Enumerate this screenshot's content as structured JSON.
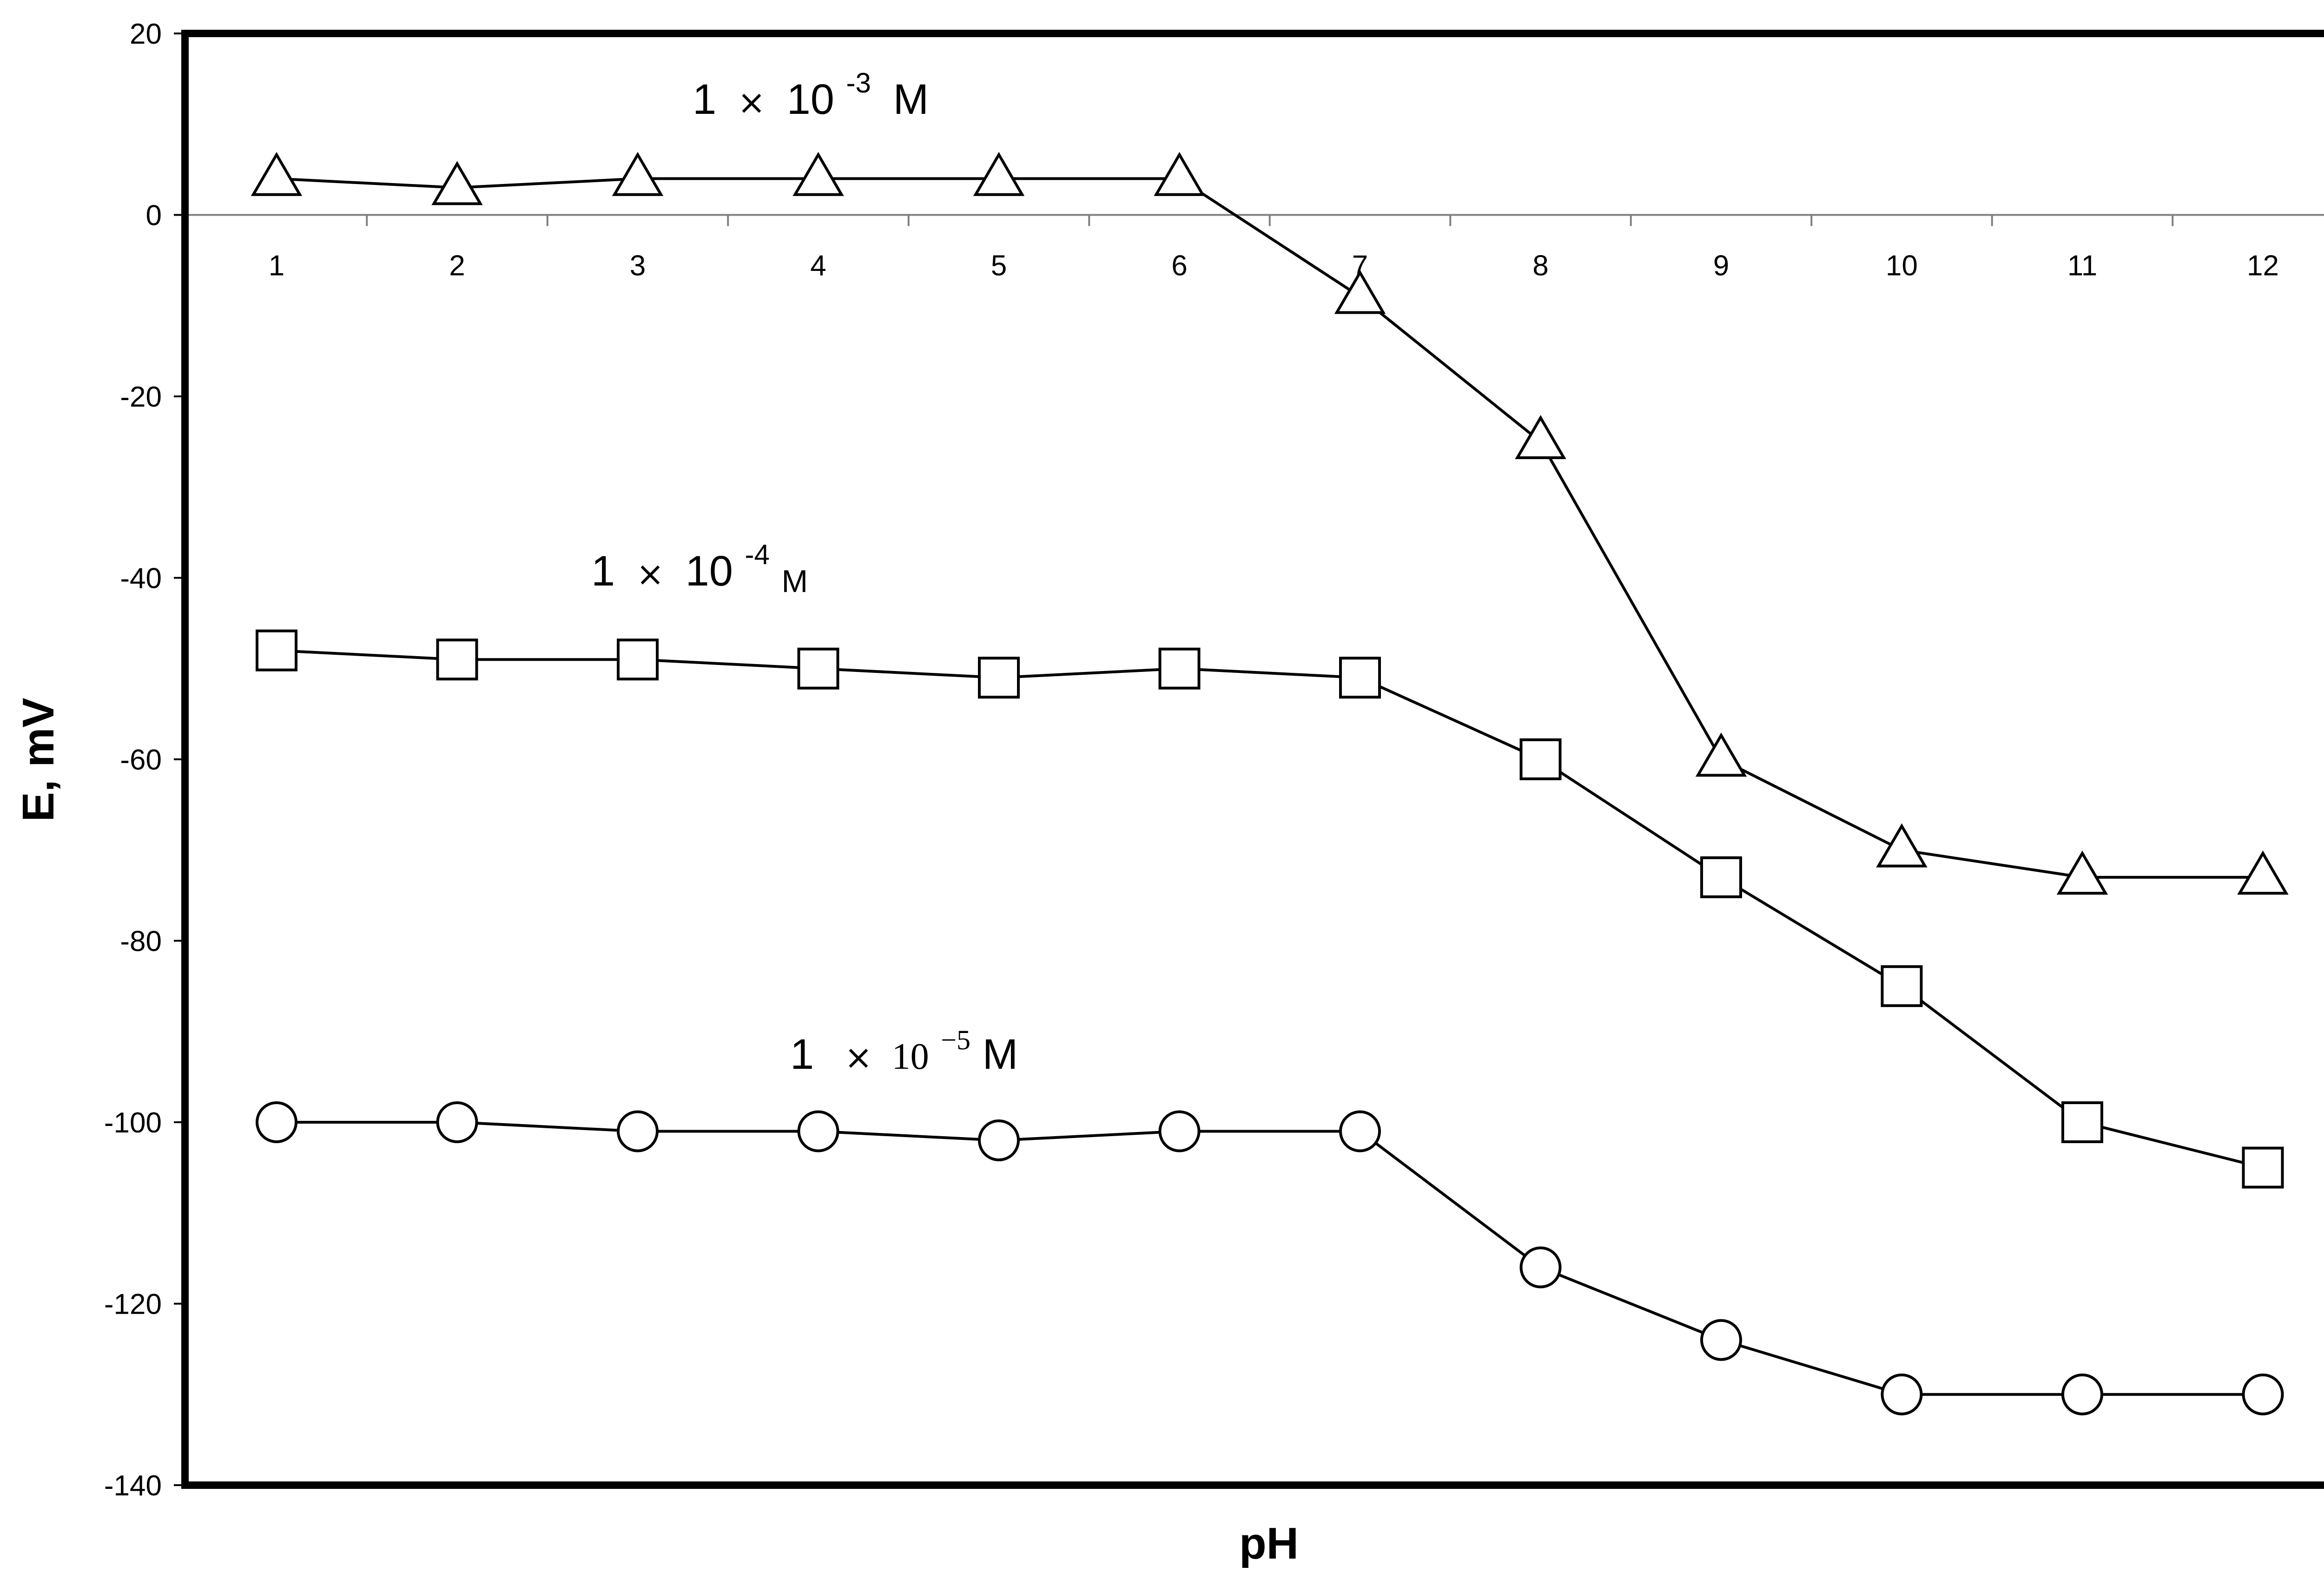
{
  "chart_data": {
    "type": "line",
    "title": "",
    "xlabel": "pH",
    "ylabel": "E, mV",
    "x": [
      1,
      2,
      3,
      4,
      5,
      6,
      7,
      8,
      9,
      10,
      11,
      12
    ],
    "x_tick_labels": [
      "1",
      "2",
      "3",
      "4",
      "5",
      "6",
      "7",
      "8",
      "9",
      "10",
      "11",
      "12"
    ],
    "ylim": [
      -140,
      20
    ],
    "y_ticks": [
      20,
      0,
      -20,
      -40,
      -60,
      -80,
      -100,
      -120,
      -140
    ],
    "y_tick_labels": [
      "20",
      "0",
      "-20",
      "-40",
      "-60",
      "-80",
      "-100",
      "-120",
      "-140"
    ],
    "grid": false,
    "legend": "none",
    "series": [
      {
        "marker": "triangle",
        "label_parts": {
          "coef": "1",
          "times": "×",
          "base": "10",
          "exp": "-3",
          "unit": "M"
        },
        "values": [
          4,
          3,
          4,
          4,
          4,
          4,
          -9,
          -25,
          -60,
          -70,
          -73,
          -73
        ]
      },
      {
        "marker": "square",
        "label_parts": {
          "coef": "1",
          "times": "×",
          "base": "10",
          "exp": "-4",
          "unit": "M"
        },
        "values": [
          -48,
          -49,
          -49,
          -50,
          -51,
          -50,
          -51,
          -60,
          -73,
          -85,
          -100,
          -105
        ]
      },
      {
        "marker": "circle",
        "label_parts": {
          "coef": "1",
          "times": "×",
          "base": "10",
          "exp": "−5",
          "unit": "M"
        },
        "values": [
          -100,
          -100,
          -101,
          -101,
          -102,
          -101,
          -101,
          -116,
          -124,
          -130,
          -130,
          -130
        ]
      }
    ]
  }
}
